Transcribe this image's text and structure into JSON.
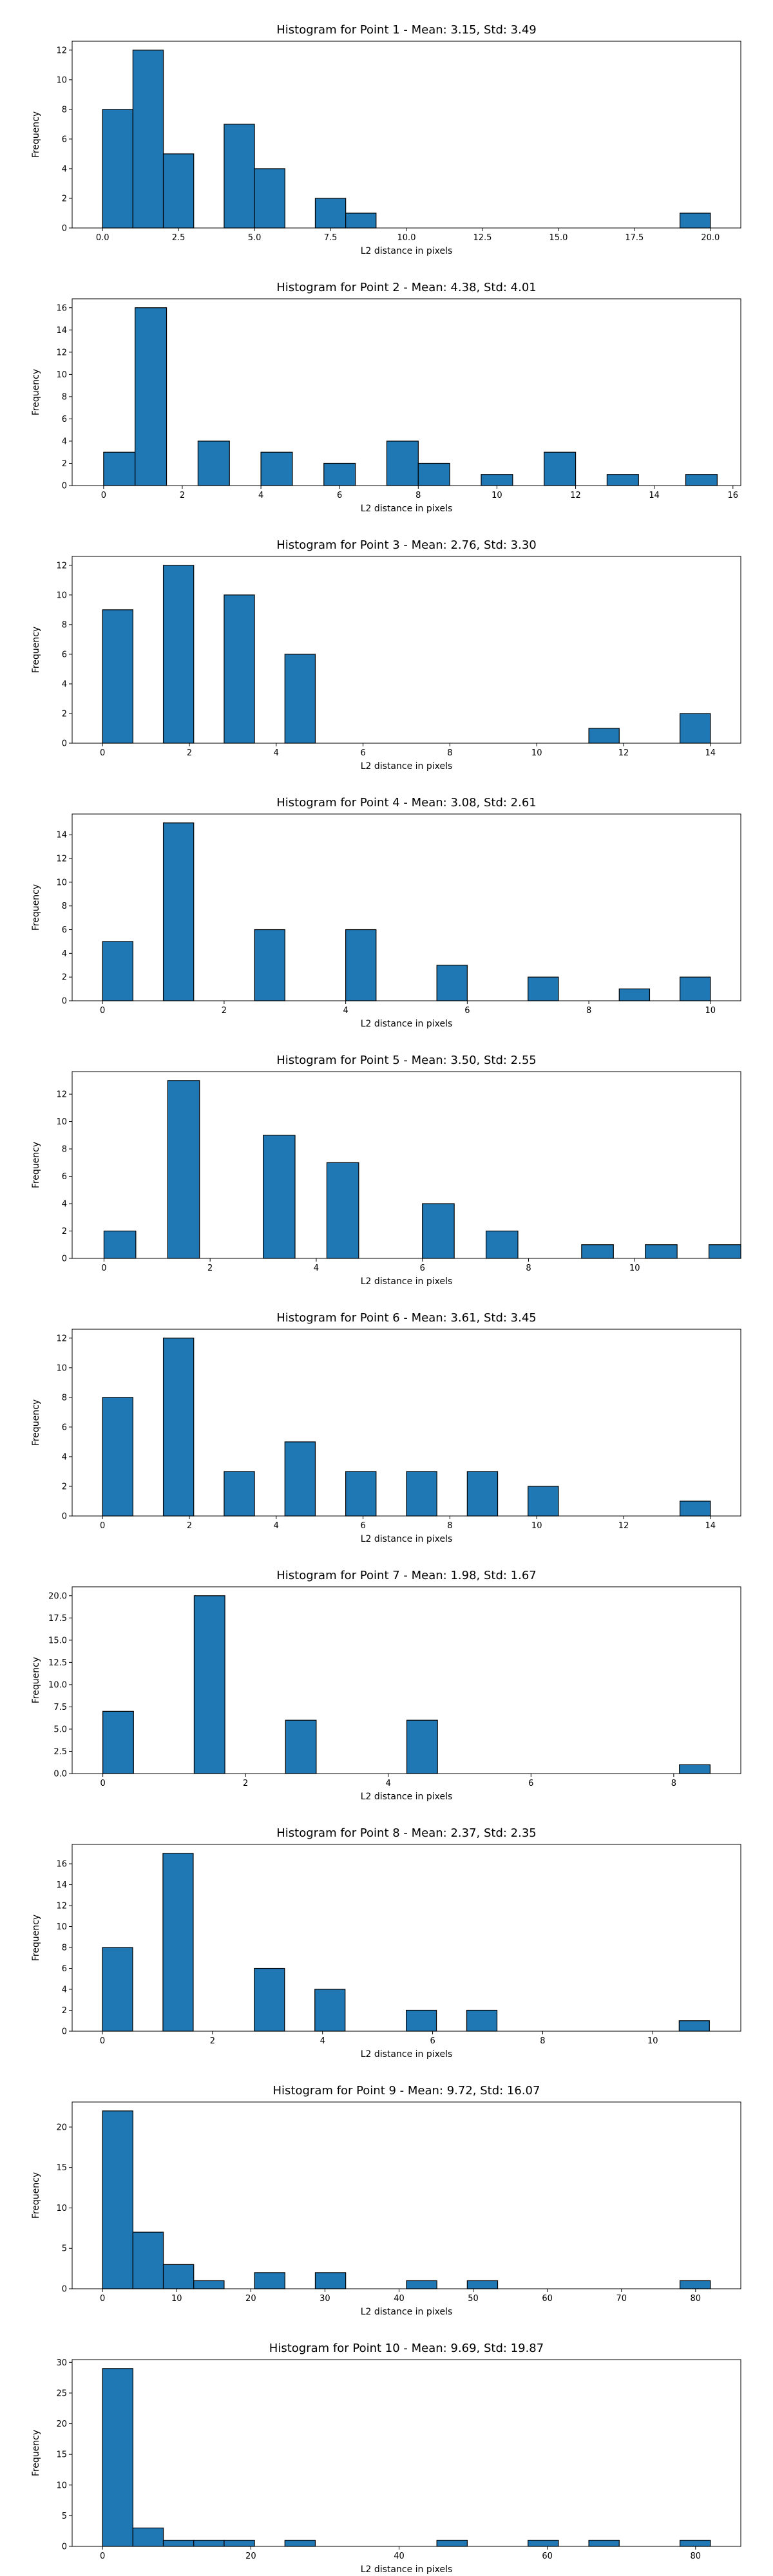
{
  "chart_data": [
    {
      "type": "bar",
      "title": "Histogram for Point 1 - Mean: 3.15, Std: 3.49",
      "xlabel": "L2 distance in pixels",
      "ylabel": "Frequency",
      "xticks": [
        "0.0",
        "2.5",
        "5.0",
        "7.5",
        "10.0",
        "12.5",
        "15.0",
        "17.5",
        "20.0"
      ],
      "yticks": [
        "0",
        "2",
        "4",
        "6",
        "8",
        "10",
        "12"
      ],
      "xlim": [
        -1.0,
        21.0
      ],
      "ylim": [
        0,
        12.6
      ],
      "bins": [
        {
          "x0": 0.0,
          "x1": 1.0,
          "count": 8
        },
        {
          "x0": 1.0,
          "x1": 2.0,
          "count": 12
        },
        {
          "x0": 2.0,
          "x1": 3.0,
          "count": 5
        },
        {
          "x0": 4.0,
          "x1": 5.0,
          "count": 7
        },
        {
          "x0": 5.0,
          "x1": 6.0,
          "count": 4
        },
        {
          "x0": 7.0,
          "x1": 8.0,
          "count": 2
        },
        {
          "x0": 8.0,
          "x1": 9.0,
          "count": 1
        },
        {
          "x0": 19.0,
          "x1": 20.0,
          "count": 1
        }
      ]
    },
    {
      "type": "bar",
      "title": "Histogram for Point 2 - Mean: 4.38, Std: 4.01",
      "xlabel": "L2 distance in pixels",
      "ylabel": "Frequency",
      "xticks": [
        "0",
        "2",
        "4",
        "6",
        "8",
        "10",
        "12",
        "14",
        "16"
      ],
      "yticks": [
        "0",
        "2",
        "4",
        "6",
        "8",
        "10",
        "12",
        "14",
        "16"
      ],
      "xlim": [
        -0.8,
        16.2
      ],
      "ylim": [
        0,
        16.8
      ],
      "bins": [
        {
          "x0": 0.0,
          "x1": 0.8,
          "count": 3
        },
        {
          "x0": 0.8,
          "x1": 1.6,
          "count": 16
        },
        {
          "x0": 2.4,
          "x1": 3.2,
          "count": 4
        },
        {
          "x0": 4.0,
          "x1": 4.8,
          "count": 3
        },
        {
          "x0": 5.6,
          "x1": 6.4,
          "count": 2
        },
        {
          "x0": 7.2,
          "x1": 8.0,
          "count": 4
        },
        {
          "x0": 8.0,
          "x1": 8.8,
          "count": 2
        },
        {
          "x0": 9.6,
          "x1": 10.4,
          "count": 1
        },
        {
          "x0": 11.2,
          "x1": 12.0,
          "count": 3
        },
        {
          "x0": 12.8,
          "x1": 13.6,
          "count": 1
        },
        {
          "x0": 14.8,
          "x1": 15.6,
          "count": 1
        }
      ]
    },
    {
      "type": "bar",
      "title": "Histogram for Point 3 - Mean: 2.76, Std: 3.30",
      "xlabel": "L2 distance in pixels",
      "ylabel": "Frequency",
      "xticks": [
        "0",
        "2",
        "4",
        "6",
        "8",
        "10",
        "12",
        "14"
      ],
      "yticks": [
        "0",
        "2",
        "4",
        "6",
        "8",
        "10",
        "12"
      ],
      "xlim": [
        -0.7,
        14.7
      ],
      "ylim": [
        0,
        12.6
      ],
      "bins": [
        {
          "x0": 0.0,
          "x1": 0.7,
          "count": 9
        },
        {
          "x0": 1.4,
          "x1": 2.1,
          "count": 12
        },
        {
          "x0": 2.8,
          "x1": 3.5,
          "count": 10
        },
        {
          "x0": 4.2,
          "x1": 4.9,
          "count": 6
        },
        {
          "x0": 11.2,
          "x1": 11.9,
          "count": 1
        },
        {
          "x0": 13.3,
          "x1": 14.0,
          "count": 2
        }
      ]
    },
    {
      "type": "bar",
      "title": "Histogram for Point 4 - Mean: 3.08, Std: 2.61",
      "xlabel": "L2 distance in pixels",
      "ylabel": "Frequency",
      "xticks": [
        "0",
        "2",
        "4",
        "6",
        "8",
        "10"
      ],
      "yticks": [
        "0",
        "2",
        "4",
        "6",
        "8",
        "10",
        "12",
        "14"
      ],
      "xlim": [
        -0.5,
        10.5
      ],
      "ylim": [
        0,
        15.75
      ],
      "bins": [
        {
          "x0": 0.0,
          "x1": 0.5,
          "count": 5
        },
        {
          "x0": 1.0,
          "x1": 1.5,
          "count": 15
        },
        {
          "x0": 2.5,
          "x1": 3.0,
          "count": 6
        },
        {
          "x0": 4.0,
          "x1": 4.5,
          "count": 6
        },
        {
          "x0": 5.5,
          "x1": 6.0,
          "count": 3
        },
        {
          "x0": 7.0,
          "x1": 7.5,
          "count": 2
        },
        {
          "x0": 8.5,
          "x1": 9.0,
          "count": 1
        },
        {
          "x0": 9.5,
          "x1": 10.0,
          "count": 2
        }
      ]
    },
    {
      "type": "bar",
      "title": "Histogram for Point 5 - Mean: 3.50, Std: 2.55",
      "xlabel": "L2 distance in pixels",
      "ylabel": "Frequency",
      "xticks": [
        "0",
        "2",
        "4",
        "6",
        "8",
        "10"
      ],
      "yticks": [
        "0",
        "2",
        "4",
        "6",
        "8",
        "10",
        "12"
      ],
      "xlim": [
        -0.6,
        12.0
      ],
      "ylim": [
        0,
        13.65
      ],
      "bins": [
        {
          "x0": 0.0,
          "x1": 0.6,
          "count": 2
        },
        {
          "x0": 1.2,
          "x1": 1.8,
          "count": 13
        },
        {
          "x0": 3.0,
          "x1": 3.6,
          "count": 9
        },
        {
          "x0": 4.2,
          "x1": 4.8,
          "count": 7
        },
        {
          "x0": 6.0,
          "x1": 6.6,
          "count": 4
        },
        {
          "x0": 7.2,
          "x1": 7.8,
          "count": 2
        },
        {
          "x0": 9.0,
          "x1": 9.6,
          "count": 1
        },
        {
          "x0": 10.2,
          "x1": 10.8,
          "count": 1
        },
        {
          "x0": 11.4,
          "x1": 12.0,
          "count": 1
        }
      ]
    },
    {
      "type": "bar",
      "title": "Histogram for Point 6 - Mean: 3.61, Std: 3.45",
      "xlabel": "L2 distance in pixels",
      "ylabel": "Frequency",
      "xticks": [
        "0",
        "2",
        "4",
        "6",
        "8",
        "10",
        "12",
        "14"
      ],
      "yticks": [
        "0",
        "2",
        "4",
        "6",
        "8",
        "10",
        "12"
      ],
      "xlim": [
        -0.7,
        14.7
      ],
      "ylim": [
        0,
        12.6
      ],
      "bins": [
        {
          "x0": 0.0,
          "x1": 0.7,
          "count": 8
        },
        {
          "x0": 1.4,
          "x1": 2.1,
          "count": 12
        },
        {
          "x0": 2.8,
          "x1": 3.5,
          "count": 3
        },
        {
          "x0": 4.2,
          "x1": 4.9,
          "count": 5
        },
        {
          "x0": 5.6,
          "x1": 6.3,
          "count": 3
        },
        {
          "x0": 7.0,
          "x1": 7.7,
          "count": 3
        },
        {
          "x0": 8.4,
          "x1": 9.1,
          "count": 3
        },
        {
          "x0": 9.8,
          "x1": 10.5,
          "count": 2
        },
        {
          "x0": 13.3,
          "x1": 14.0,
          "count": 1
        }
      ]
    },
    {
      "type": "bar",
      "title": "Histogram for Point 7 - Mean: 1.98, Std: 1.67",
      "xlabel": "L2 distance in pixels",
      "ylabel": "Frequency",
      "xticks": [
        "0",
        "2",
        "4",
        "6",
        "8"
      ],
      "yticks": [
        "0.0",
        "2.5",
        "5.0",
        "7.5",
        "10.0",
        "12.5",
        "15.0",
        "17.5",
        "20.0"
      ],
      "xlim": [
        -0.43,
        8.94
      ],
      "ylim": [
        0,
        21.0
      ],
      "bins": [
        {
          "x0": 0.0,
          "x1": 0.43,
          "count": 7
        },
        {
          "x0": 1.28,
          "x1": 1.71,
          "count": 20
        },
        {
          "x0": 2.56,
          "x1": 2.99,
          "count": 6
        },
        {
          "x0": 4.26,
          "x1": 4.69,
          "count": 6
        },
        {
          "x0": 8.08,
          "x1": 8.51,
          "count": 1
        }
      ]
    },
    {
      "type": "bar",
      "title": "Histogram for Point 8 - Mean: 2.37, Std: 2.35",
      "xlabel": "L2 distance in pixels",
      "ylabel": "Frequency",
      "xticks": [
        "0",
        "2",
        "4",
        "6",
        "8",
        "10"
      ],
      "yticks": [
        "0",
        "2",
        "4",
        "6",
        "8",
        "10",
        "12",
        "14",
        "16"
      ],
      "xlim": [
        -0.55,
        11.6
      ],
      "ylim": [
        0,
        17.85
      ],
      "bins": [
        {
          "x0": 0.0,
          "x1": 0.55,
          "count": 8
        },
        {
          "x0": 1.1,
          "x1": 1.65,
          "count": 17
        },
        {
          "x0": 2.76,
          "x1": 3.31,
          "count": 6
        },
        {
          "x0": 3.86,
          "x1": 4.41,
          "count": 4
        },
        {
          "x0": 5.52,
          "x1": 6.07,
          "count": 2
        },
        {
          "x0": 6.62,
          "x1": 7.17,
          "count": 2
        },
        {
          "x0": 10.48,
          "x1": 11.03,
          "count": 1
        }
      ]
    },
    {
      "type": "bar",
      "title": "Histogram for Point 9 - Mean: 9.72, Std: 16.07",
      "xlabel": "L2 distance in pixels",
      "ylabel": "Frequency",
      "xticks": [
        "0",
        "10",
        "20",
        "30",
        "40",
        "50",
        "60",
        "70",
        "80"
      ],
      "yticks": [
        "0",
        "5",
        "10",
        "15",
        "20"
      ],
      "xlim": [
        -4.1,
        86.1
      ],
      "ylim": [
        0,
        23.1
      ],
      "bins": [
        {
          "x0": 0.0,
          "x1": 4.1,
          "count": 22
        },
        {
          "x0": 4.1,
          "x1": 8.2,
          "count": 7
        },
        {
          "x0": 8.2,
          "x1": 12.3,
          "count": 3
        },
        {
          "x0": 12.3,
          "x1": 16.4,
          "count": 1
        },
        {
          "x0": 20.5,
          "x1": 24.6,
          "count": 2
        },
        {
          "x0": 28.7,
          "x1": 32.8,
          "count": 2
        },
        {
          "x0": 41.0,
          "x1": 45.1,
          "count": 1
        },
        {
          "x0": 49.2,
          "x1": 53.3,
          "count": 1
        },
        {
          "x0": 77.9,
          "x1": 82.0,
          "count": 1
        }
      ]
    },
    {
      "type": "bar",
      "title": "Histogram for Point 10 - Mean: 9.69, Std: 19.87",
      "xlabel": "L2 distance in pixels",
      "ylabel": "Frequency",
      "xticks": [
        "0",
        "20",
        "40",
        "60",
        "80"
      ],
      "yticks": [
        "0",
        "5",
        "10",
        "15",
        "20",
        "25",
        "30"
      ],
      "xlim": [
        -4.1,
        86.1
      ],
      "ylim": [
        0,
        30.45
      ],
      "bins": [
        {
          "x0": 0.0,
          "x1": 4.1,
          "count": 29
        },
        {
          "x0": 4.1,
          "x1": 8.2,
          "count": 3
        },
        {
          "x0": 8.2,
          "x1": 12.3,
          "count": 1
        },
        {
          "x0": 12.3,
          "x1": 16.4,
          "count": 1
        },
        {
          "x0": 16.4,
          "x1": 20.5,
          "count": 1
        },
        {
          "x0": 24.6,
          "x1": 28.7,
          "count": 1
        },
        {
          "x0": 45.1,
          "x1": 49.2,
          "count": 1
        },
        {
          "x0": 57.4,
          "x1": 61.5,
          "count": 1
        },
        {
          "x0": 65.6,
          "x1": 69.7,
          "count": 1
        },
        {
          "x0": 77.9,
          "x1": 82.0,
          "count": 1
        }
      ]
    }
  ]
}
